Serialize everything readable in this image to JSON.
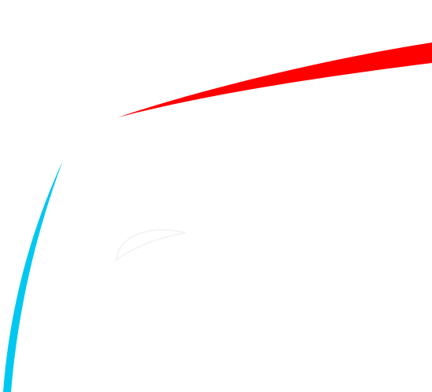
{
  "canvas": {
    "background": "#ffffff"
  },
  "shapes": {
    "red_swoosh": {
      "color": "#ff0000",
      "icon": "red-swoosh-icon"
    },
    "blue_swoosh": {
      "color": "#00c8f0",
      "icon": "blue-swoosh-icon"
    },
    "ghost_mark": {
      "color": "#f4f4f4",
      "icon": "faint-curve-icon"
    }
  }
}
